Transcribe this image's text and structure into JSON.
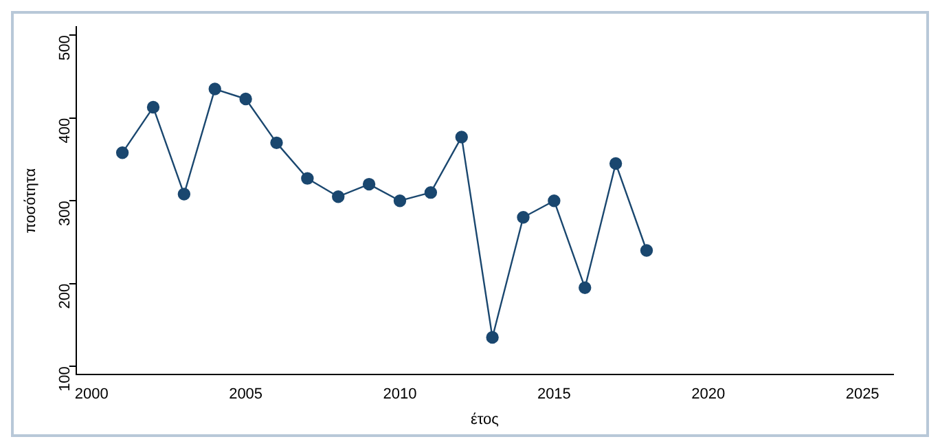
{
  "chart_data": {
    "type": "line",
    "xlabel": "έτος",
    "ylabel": "ποσότητα",
    "x": [
      2001,
      2002,
      2003,
      2004,
      2005,
      2006,
      2007,
      2008,
      2009,
      2010,
      2011,
      2012,
      2013,
      2014,
      2015,
      2016,
      2017,
      2018
    ],
    "series": [
      {
        "color": "#1a476f",
        "values": [
          358,
          413,
          308,
          435,
          423,
          370,
          327,
          305,
          320,
          300,
          310,
          377,
          135,
          280,
          300,
          195,
          345,
          240
        ]
      }
    ],
    "xlim": [
      1999.5,
      2026
    ],
    "xticks": [
      2000,
      2005,
      2010,
      2015,
      2020,
      2025
    ],
    "ylim": [
      90,
      510
    ],
    "yticks": [
      100,
      200,
      300,
      400,
      500
    ],
    "grid": false,
    "legend": false,
    "marker": "circle",
    "line_style": "solid"
  }
}
